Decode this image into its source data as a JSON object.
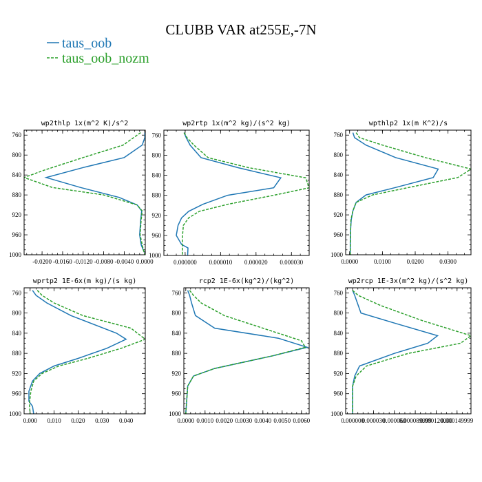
{
  "figure_title": "CLUBB VAR at255E,-7N",
  "legend": [
    {
      "label": "taus_oob",
      "color": "#1f77b4",
      "dash": "solid"
    },
    {
      "label": "taus_oob_nozm",
      "color": "#2ca02c",
      "dash": "dashed"
    }
  ],
  "chart_data": [
    {
      "type": "line",
      "title": "wp2thlp  1x(m^2 K)/s^2",
      "xlim": [
        -0.0235,
        0.0001
      ],
      "ylim": [
        1000,
        750
      ],
      "xticks": [
        -0.02,
        -0.016,
        -0.012,
        -0.008,
        -0.004,
        0.0
      ],
      "xtick_labels": [
        "-0.0200",
        "-0.0160",
        "-0.0120",
        "-0.0080",
        "-0.0040",
        "0.0000"
      ],
      "yticks": [
        760,
        800,
        840,
        880,
        920,
        960,
        1000
      ],
      "ytick_labels": [
        "760",
        "800",
        "840",
        "880",
        "920",
        "960",
        "1000"
      ],
      "series": [
        {
          "name": "taus_oob",
          "x": [
            0.0,
            0.0,
            -0.0005,
            -0.004,
            -0.012,
            -0.0192,
            -0.0125,
            -0.005,
            -0.0015,
            -0.0006,
            -0.0008,
            -0.001,
            -0.0007,
            -0.0001
          ],
          "y": [
            755,
            765,
            780,
            805,
            825,
            845,
            865,
            885,
            900,
            912,
            930,
            960,
            980,
            995
          ]
        },
        {
          "name": "taus_oob_nozm",
          "x": [
            -0.0008,
            -0.0042,
            -0.012,
            -0.0195,
            -0.0235,
            -0.018,
            -0.008,
            -0.0015,
            -0.0005,
            -0.0007,
            -0.0009,
            -0.0004,
            0.0
          ],
          "y": [
            755,
            780,
            805,
            830,
            845,
            865,
            880,
            900,
            912,
            930,
            960,
            985,
            1000
          ]
        }
      ]
    },
    {
      "type": "line",
      "title": "wp2rtp  1x(m^2 kg)/(s^2 kg)",
      "xlim": [
        -6e-06,
        3.5e-05
      ],
      "ylim": [
        1000,
        750
      ],
      "xticks": [
        0.0,
        1e-05,
        2e-05,
        3e-05
      ],
      "xtick_labels": [
        "0.000000",
        "0.000010",
        "0.000020",
        "0.000030"
      ],
      "yticks": [
        760,
        800,
        840,
        880,
        920,
        960,
        1000
      ],
      "ytick_labels": [
        "760",
        "800",
        "840",
        "880",
        "920",
        "960",
        "1000"
      ],
      "series": [
        {
          "name": "taus_oob",
          "x": [
            -3e-07,
            3e-07,
            1.4e-06,
            4.5e-06,
            1.5e-05,
            2.7e-05,
            2.5e-05,
            1.2e-05,
            5e-06,
            1e-06,
            -1e-06,
            -2e-06,
            -2.5e-06,
            -1e-06,
            8e-07,
            7e-07
          ],
          "y": [
            755,
            765,
            780,
            805,
            825,
            845,
            865,
            880,
            898,
            912,
            925,
            940,
            960,
            978,
            985,
            1000
          ]
        },
        {
          "name": "taus_oob_nozm",
          "x": [
            -3e-07,
            5e-07,
            2.5e-06,
            6.5e-06,
            1.8e-05,
            3.4e-05,
            3.5e-05,
            2.5e-05,
            1.2e-05,
            4e-06,
            1e-06,
            -5e-07,
            -8e-07,
            -8e-07
          ],
          "y": [
            755,
            765,
            780,
            805,
            825,
            845,
            865,
            880,
            898,
            912,
            925,
            940,
            965,
            1000
          ]
        }
      ]
    },
    {
      "type": "line",
      "title": "wpthlp2  1x(m K^2)/s",
      "xlim": [
        -0.0012,
        0.037
      ],
      "ylim": [
        1000,
        750
      ],
      "xticks": [
        0.0,
        0.01,
        0.02,
        0.03
      ],
      "xtick_labels": [
        "0.0000",
        "0.0100",
        "0.0200",
        "0.0300"
      ],
      "yticks": [
        760,
        800,
        840,
        880,
        920,
        960,
        1000
      ],
      "ytick_labels": [
        "760",
        "800",
        "840",
        "880",
        "920",
        "960",
        "1000"
      ],
      "series": [
        {
          "name": "taus_oob",
          "x": [
            0.001,
            0.0015,
            0.005,
            0.014,
            0.027,
            0.0255,
            0.014,
            0.005,
            0.002,
            0.001,
            0.0005,
            0.0003,
            0.0002,
            0.0002
          ],
          "y": [
            755,
            765,
            780,
            805,
            828,
            845,
            865,
            880,
            895,
            912,
            930,
            950,
            975,
            1000
          ]
        },
        {
          "name": "taus_oob_nozm",
          "x": [
            0.002,
            0.003,
            0.01,
            0.023,
            0.037,
            0.033,
            0.018,
            0.007,
            0.002,
            0.001,
            0.0004,
            0.0003,
            0.0002
          ],
          "y": [
            755,
            765,
            780,
            805,
            828,
            845,
            865,
            880,
            895,
            912,
            930,
            960,
            1000
          ]
        }
      ]
    },
    {
      "type": "line",
      "title": "wprtp2  1E-6x(m kg)/(s kg)",
      "xlim": [
        -0.0025,
        0.048
      ],
      "ylim": [
        1000,
        750
      ],
      "xticks": [
        0.0,
        0.01,
        0.02,
        0.03,
        0.04
      ],
      "xtick_labels": [
        "0.000",
        "0.010",
        "0.020",
        "0.030",
        "0.040"
      ],
      "yticks": [
        760,
        800,
        840,
        880,
        920,
        960,
        1000
      ],
      "ytick_labels": [
        "760",
        "800",
        "840",
        "880",
        "920",
        "960",
        "1000"
      ],
      "series": [
        {
          "name": "taus_oob",
          "x": [
            0.001,
            0.0025,
            0.007,
            0.017,
            0.036,
            0.04,
            0.032,
            0.02,
            0.01,
            0.004,
            0.001,
            -0.0005,
            -0.0005,
            0.001,
            0.0015
          ],
          "y": [
            755,
            765,
            780,
            805,
            840,
            852,
            870,
            890,
            905,
            920,
            935,
            955,
            975,
            985,
            1000
          ]
        },
        {
          "name": "taus_oob_nozm",
          "x": [
            0.003,
            0.005,
            0.01,
            0.022,
            0.042,
            0.048,
            0.038,
            0.024,
            0.012,
            0.005,
            0.0015,
            0.0003,
            -0.0003,
            0.0
          ],
          "y": [
            755,
            765,
            780,
            805,
            830,
            852,
            870,
            890,
            905,
            920,
            935,
            955,
            980,
            1000
          ]
        }
      ]
    },
    {
      "type": "line",
      "title": "rcp2  1E-6x(kg^2)/(kg^2)",
      "xlim": [
        -0.0001,
        0.0064
      ],
      "ylim": [
        1000,
        750
      ],
      "xticks": [
        0.0,
        0.001,
        0.002,
        0.003,
        0.004,
        0.005,
        0.006
      ],
      "xtick_labels": [
        "0.0000",
        "0.0010",
        "0.0020",
        "0.0030",
        "0.0040",
        "0.0050",
        "0.0060"
      ],
      "yticks": [
        760,
        800,
        840,
        880,
        920,
        960,
        1000
      ],
      "ytick_labels": [
        "760",
        "800",
        "840",
        "880",
        "920",
        "960",
        "1000"
      ],
      "series": [
        {
          "name": "taus_oob",
          "x": [
            0.0001,
            0.0002,
            0.0003,
            0.0005,
            0.0015,
            0.0048,
            0.0063,
            0.0045,
            0.0015,
            0.0004,
            0.0001,
            0.0
          ],
          "y": [
            755,
            765,
            780,
            805,
            830,
            850,
            868,
            885,
            910,
            925,
            945,
            1000
          ]
        },
        {
          "name": "taus_oob_nozm",
          "x": [
            0.0002,
            0.0004,
            0.0008,
            0.002,
            0.004,
            0.006,
            0.0062,
            0.0045,
            0.0015,
            0.0004,
            0.0001,
            0.0
          ],
          "y": [
            755,
            765,
            780,
            805,
            830,
            855,
            868,
            885,
            910,
            925,
            945,
            1000
          ]
        }
      ]
    },
    {
      "type": "line",
      "title": "wp2rcp  1E-3x(m^2 kg)/(s^2 kg)",
      "xlim": [
        -1e-05,
        0.00017
      ],
      "ylim": [
        1000,
        750
      ],
      "xticks": [
        0.0,
        3e-05,
        6e-05,
        9e-05,
        0.00012,
        0.00015
      ],
      "xtick_labels": [
        "0.000000",
        "0.000030",
        "0.000060",
        "0.000089999",
        "0.000120000",
        "0.000149999"
      ],
      "yticks": [
        760,
        800,
        840,
        880,
        920,
        960,
        1000
      ],
      "ytick_labels": [
        "760",
        "800",
        "840",
        "880",
        "920",
        "960",
        "1000"
      ],
      "series": [
        {
          "name": "taus_oob",
          "x": [
            0.0,
            3e-06,
            1.2e-05,
            6e-05,
            0.000122,
            0.000108,
            6e-05,
            1e-05,
            3e-06,
            0.0,
            0.0
          ],
          "y": [
            755,
            765,
            800,
            820,
            845,
            860,
            880,
            905,
            925,
            945,
            1000
          ]
        },
        {
          "name": "taus_oob_nozm",
          "x": [
            0.0,
            8e-06,
            4e-05,
            0.0001,
            0.00017,
            0.000155,
            8e-05,
            2e-05,
            5e-06,
            0.0,
            0.0
          ],
          "y": [
            755,
            765,
            785,
            815,
            845,
            860,
            880,
            905,
            925,
            945,
            1000
          ]
        }
      ]
    }
  ]
}
